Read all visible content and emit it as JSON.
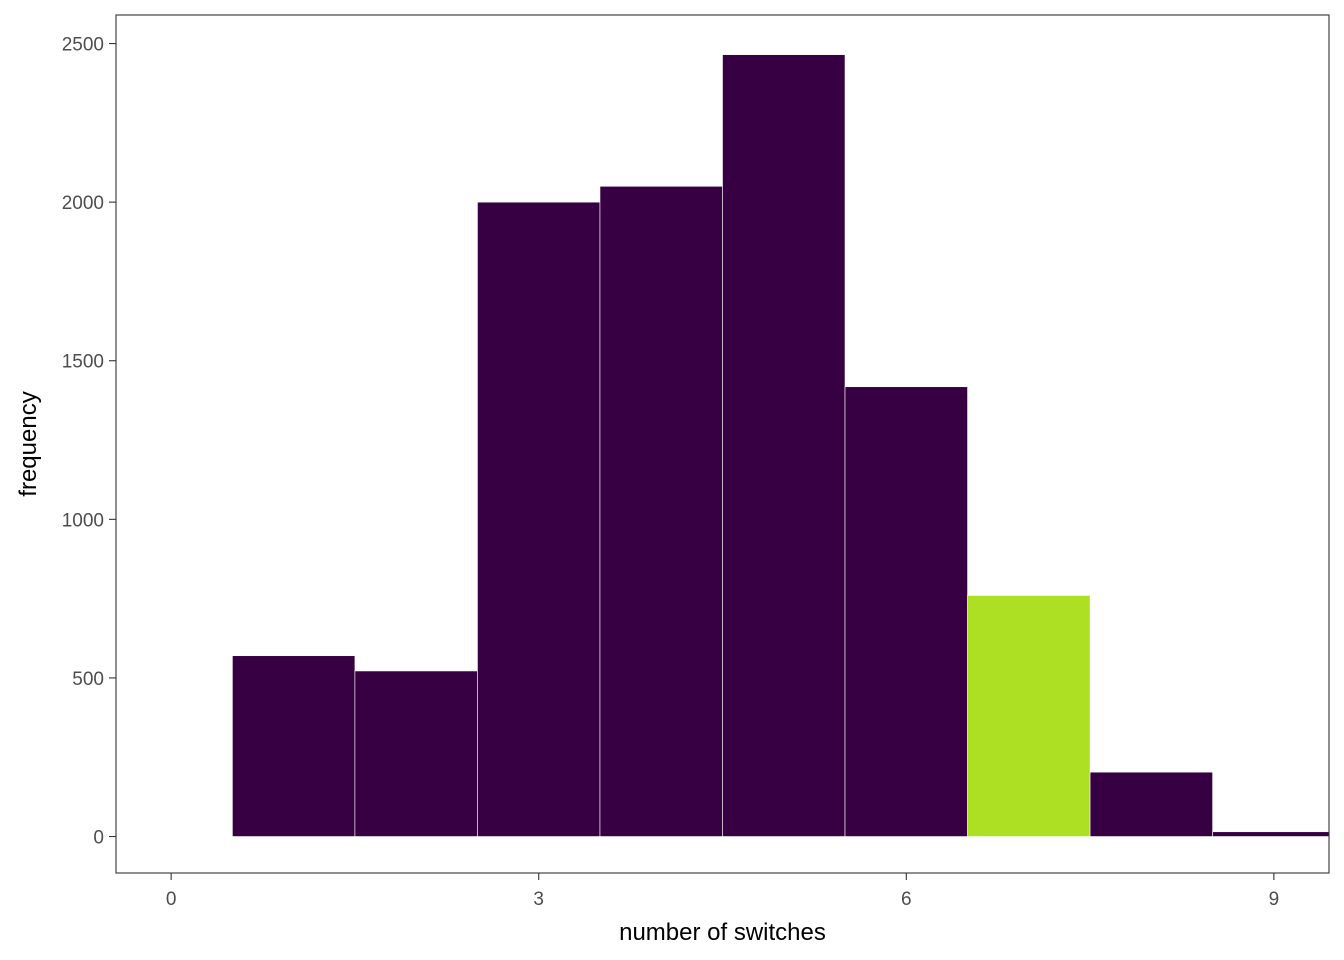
{
  "chart_data": {
    "type": "bar",
    "x": [
      1,
      2,
      3,
      4,
      5,
      6,
      7,
      8,
      9
    ],
    "values": [
      570,
      522,
      2000,
      2050,
      2465,
      1418,
      760,
      203,
      15
    ],
    "bin_width": 1,
    "highlight_x": 7,
    "xlabel": "number of switches",
    "ylabel": "frequency",
    "xlim": [
      -0.45,
      9.45
    ],
    "ylim": [
      -115,
      2590
    ],
    "x_ticks": [
      0,
      3,
      6,
      9
    ],
    "y_ticks": [
      0,
      500,
      1000,
      1500,
      2000,
      2500
    ],
    "grid": false,
    "legend": "none",
    "colors": {
      "bar": "#360042",
      "highlight": "#addf22",
      "bar_outline": "#ffffff",
      "panel_border": "#333333",
      "tick_text": "#4d4d4d"
    }
  }
}
